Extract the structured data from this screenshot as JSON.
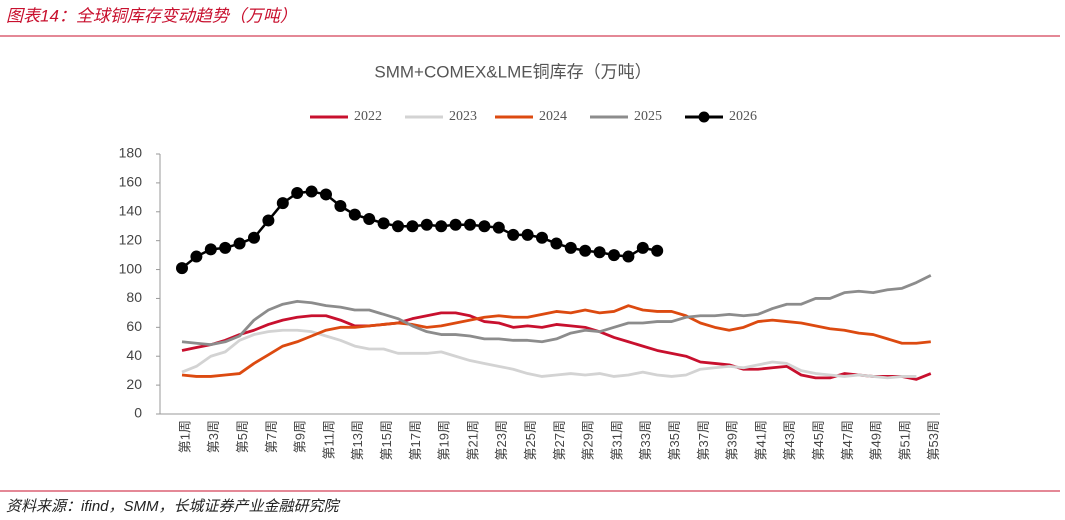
{
  "header": {
    "title": "图表14：全球铜库存变动趋势（万吨）"
  },
  "footer": {
    "source": "资料来源：ifind，SMM，长城证券产业金融研究院"
  },
  "chart_data": {
    "type": "line",
    "title": "SMM+COMEX&LME铜库存（万吨）",
    "categories": [
      "第1周",
      null,
      "第3周",
      null,
      "第5周",
      null,
      "第7周",
      null,
      "第9周",
      null,
      "第11周",
      null,
      "第13周",
      null,
      "第15周",
      null,
      "第17周",
      null,
      "第19周",
      null,
      "第21周",
      null,
      "第23周",
      null,
      "第25周",
      null,
      "第27周",
      null,
      "第29周",
      null,
      "第31周",
      null,
      "第33周",
      null,
      "第35周",
      null,
      "第37周",
      null,
      "第39周",
      null,
      "第41周",
      null,
      "第43周",
      null,
      "第45周",
      null,
      "第47周",
      null,
      "第49周",
      null,
      "第51周",
      null,
      "第53周"
    ],
    "series": [
      {
        "name": "2022",
        "color": "#c8102e",
        "values": [
          44,
          46,
          48,
          51,
          55,
          58,
          62,
          65,
          67,
          68,
          68,
          65,
          61,
          61,
          62,
          63,
          66,
          68,
          70,
          70,
          68,
          64,
          63,
          60,
          61,
          60,
          62,
          61,
          60,
          57,
          53,
          50,
          47,
          44,
          42,
          40,
          36,
          35,
          34,
          31,
          31,
          32,
          33,
          27,
          25,
          25,
          28,
          27,
          26,
          26,
          26,
          24,
          28
        ]
      },
      {
        "name": "2023",
        "color": "#d3d3d3",
        "values": [
          29,
          33,
          40,
          43,
          51,
          55,
          57,
          58,
          58,
          57,
          54,
          51,
          47,
          45,
          45,
          42,
          42,
          42,
          43,
          40,
          37,
          35,
          33,
          31,
          28,
          26,
          27,
          28,
          27,
          28,
          26,
          27,
          29,
          27,
          26,
          27,
          31,
          32,
          33,
          32,
          34,
          36,
          35,
          30,
          28,
          27,
          26,
          27,
          26,
          25,
          26,
          26,
          null
        ]
      },
      {
        "name": "2024",
        "color": "#dc4a10",
        "values": [
          27,
          26,
          26,
          27,
          28,
          35,
          41,
          47,
          50,
          54,
          58,
          60,
          60,
          61,
          62,
          63,
          62,
          60,
          61,
          63,
          65,
          67,
          68,
          67,
          67,
          69,
          71,
          70,
          72,
          70,
          71,
          75,
          72,
          71,
          71,
          68,
          63,
          60,
          58,
          60,
          64,
          65,
          64,
          63,
          61,
          59,
          58,
          56,
          55,
          52,
          49,
          49,
          50
        ]
      },
      {
        "name": "2025",
        "color": "#8c8c8c",
        "values": [
          50,
          49,
          48,
          50,
          54,
          65,
          72,
          76,
          78,
          77,
          75,
          74,
          72,
          72,
          69,
          66,
          61,
          57,
          55,
          55,
          54,
          52,
          52,
          51,
          51,
          50,
          52,
          56,
          58,
          57,
          60,
          63,
          63,
          64,
          64,
          67,
          68,
          68,
          69,
          68,
          69,
          73,
          76,
          76,
          80,
          80,
          84,
          85,
          84,
          86,
          87,
          91,
          96
        ]
      },
      {
        "name": "2026",
        "color": "#000000",
        "markers": true,
        "values": [
          101,
          109,
          114,
          115,
          118,
          122,
          134,
          146,
          153,
          154,
          152,
          144,
          138,
          135,
          132,
          130,
          130,
          131,
          130,
          131,
          131,
          130,
          129,
          124,
          124,
          122,
          118,
          115,
          113,
          112,
          110,
          109,
          115,
          113,
          null,
          null,
          null,
          null,
          null,
          null,
          null,
          null,
          null,
          null,
          null,
          null,
          null,
          null,
          null,
          null,
          null,
          null,
          null
        ]
      }
    ],
    "ylim": [
      0,
      180
    ],
    "yticks": [
      0,
      20,
      40,
      60,
      80,
      100,
      120,
      140,
      160,
      180
    ],
    "grid": false,
    "legend": "top"
  }
}
